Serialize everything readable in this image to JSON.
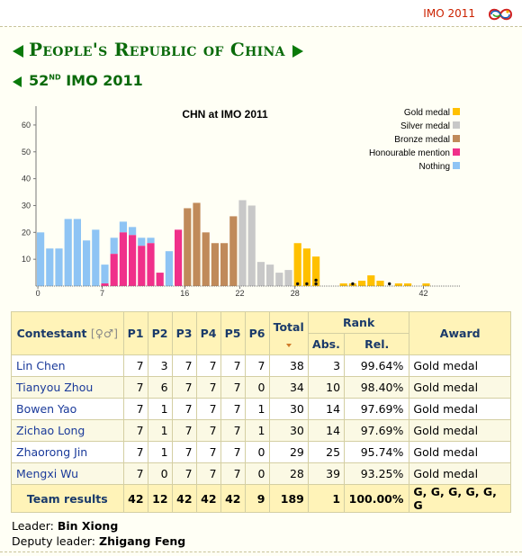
{
  "header": {
    "imo_link": "IMO 2011",
    "logo_icon": "imo-logo-icon"
  },
  "title": {
    "country": "People's Republic of China",
    "edition_prefix": "52",
    "edition_suffix": "ND",
    "edition_rest": "IMO 2011"
  },
  "chart_data": {
    "type": "bar",
    "title": "CHN at IMO 2011",
    "xlabel": "",
    "ylabel": "",
    "ylim": [
      0,
      65
    ],
    "yticks": [
      10,
      20,
      30,
      40,
      50,
      60
    ],
    "xticks": [
      0,
      7,
      16,
      22,
      28,
      42
    ],
    "grid": false,
    "legend_position": "top-right",
    "x": [
      0,
      1,
      2,
      3,
      4,
      5,
      6,
      7,
      8,
      9,
      10,
      11,
      12,
      13,
      14,
      15,
      16,
      17,
      18,
      19,
      20,
      21,
      22,
      23,
      24,
      25,
      26,
      27,
      28,
      29,
      30,
      31,
      32,
      33,
      34,
      35,
      36,
      37,
      38,
      39,
      40,
      41,
      42,
      43,
      44,
      45
    ],
    "values": [
      20,
      14,
      14,
      25,
      25,
      17,
      21,
      8,
      18,
      24,
      22,
      18,
      18,
      5,
      13,
      21,
      29,
      31,
      20,
      16,
      16,
      26,
      32,
      30,
      9,
      8,
      5,
      6,
      16,
      14,
      11,
      0,
      0,
      1,
      1,
      2,
      4,
      2,
      0,
      1,
      1,
      0,
      1,
      0,
      0,
      0
    ],
    "categories_by_score": [
      "nothing",
      "nothing",
      "nothing",
      "nothing",
      "nothing",
      "nothing",
      "nothing",
      "nothing",
      "nothing",
      "nothing",
      "nothing",
      "nothing",
      "nothing",
      "nothing",
      "nothing",
      "nothing",
      "bronze",
      "bronze",
      "bronze",
      "bronze",
      "bronze",
      "bronze",
      "silver",
      "silver",
      "silver",
      "silver",
      "silver",
      "silver",
      "gold",
      "gold",
      "gold",
      "gold",
      "gold",
      "gold",
      "gold",
      "gold",
      "gold",
      "gold",
      "gold",
      "gold",
      "gold",
      "gold",
      "gold",
      "gold",
      "gold",
      "gold"
    ],
    "honourable_mention_values": [
      0,
      0,
      0,
      0,
      0,
      0,
      0,
      1,
      12,
      20,
      19,
      15,
      16,
      5,
      0,
      21
    ],
    "team_member_scores": [
      28,
      29,
      30,
      30,
      34,
      38
    ],
    "legend": [
      {
        "name": "Gold medal",
        "color": "#ffc000"
      },
      {
        "name": "Silver medal",
        "color": "#c8c8c8"
      },
      {
        "name": "Bronze medal",
        "color": "#c08a5a"
      },
      {
        "name": "Honourable mention",
        "color": "#f0308a"
      },
      {
        "name": "Nothing",
        "color": "#8ec4f4"
      }
    ],
    "series": [
      {
        "name": "Gold medal",
        "color": "#ffc000"
      },
      {
        "name": "Silver medal",
        "color": "#c8c8c8"
      },
      {
        "name": "Bronze medal",
        "color": "#c08a5a"
      },
      {
        "name": "Honourable mention",
        "color": "#f0308a"
      },
      {
        "name": "Nothing",
        "color": "#8ec4f4"
      }
    ]
  },
  "table": {
    "headers": {
      "contestant": "Contestant",
      "gender": "[♀♂]",
      "problems": [
        "P1",
        "P2",
        "P3",
        "P4",
        "P5",
        "P6"
      ],
      "total": "Total",
      "rank": "Rank",
      "abs": "Abs.",
      "rel": "Rel.",
      "award": "Award"
    },
    "rows": [
      {
        "name": "Lin Chen",
        "scores": [
          7,
          3,
          7,
          7,
          7,
          7
        ],
        "total": "38",
        "abs": "3",
        "rel": "99.64%",
        "award": "Gold medal"
      },
      {
        "name": "Tianyou Zhou",
        "scores": [
          7,
          6,
          7,
          7,
          7,
          0
        ],
        "total": "34",
        "abs": "10",
        "rel": "98.40%",
        "award": "Gold medal"
      },
      {
        "name": "Bowen Yao",
        "scores": [
          7,
          1,
          7,
          7,
          7,
          1
        ],
        "total": "30",
        "abs": "14",
        "rel": "97.69%",
        "award": "Gold medal"
      },
      {
        "name": "Zichao Long",
        "scores": [
          7,
          1,
          7,
          7,
          7,
          1
        ],
        "total": "30",
        "abs": "14",
        "rel": "97.69%",
        "award": "Gold medal"
      },
      {
        "name": "Zhaorong Jin",
        "scores": [
          7,
          1,
          7,
          7,
          7,
          0
        ],
        "total": "29",
        "abs": "25",
        "rel": "95.74%",
        "award": "Gold medal"
      },
      {
        "name": "Mengxi Wu",
        "scores": [
          7,
          0,
          7,
          7,
          7,
          0
        ],
        "total": "28",
        "abs": "39",
        "rel": "93.25%",
        "award": "Gold medal"
      }
    ],
    "team": {
      "label": "Team results",
      "scores": [
        42,
        12,
        42,
        42,
        42,
        9
      ],
      "total": "189",
      "abs": "1",
      "rel": "100.00%",
      "award": "G, G, G, G, G, G"
    }
  },
  "leaders": {
    "leader_label": "Leader:",
    "leader_name": "Bin Xiong",
    "deputy_label": "Deputy leader:",
    "deputy_name": "Zhigang Feng"
  }
}
